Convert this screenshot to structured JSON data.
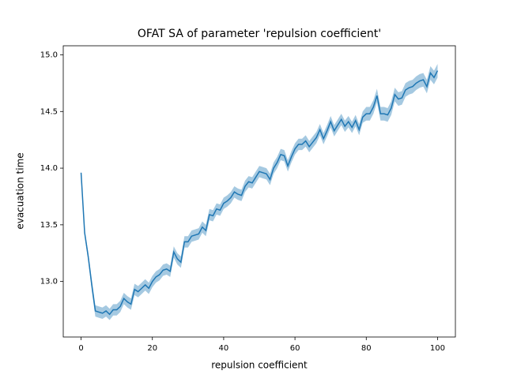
{
  "chart_data": {
    "type": "line",
    "title": "OFAT SA of parameter 'repulsion coefficient'",
    "xlabel": "repulsion coefficient",
    "ylabel": "evacuation time",
    "x": [
      0,
      1,
      2,
      3,
      4,
      5,
      6,
      7,
      8,
      9,
      10,
      11,
      12,
      13,
      14,
      15,
      16,
      17,
      18,
      19,
      20,
      21,
      22,
      23,
      24,
      25,
      26,
      27,
      28,
      29,
      30,
      31,
      32,
      33,
      34,
      35,
      36,
      37,
      38,
      39,
      40,
      41,
      42,
      43,
      44,
      45,
      46,
      47,
      48,
      49,
      50,
      51,
      52,
      53,
      54,
      55,
      56,
      57,
      58,
      59,
      60,
      61,
      62,
      63,
      64,
      65,
      66,
      67,
      68,
      69,
      70,
      71,
      72,
      73,
      74,
      75,
      76,
      77,
      78,
      79,
      80,
      81,
      82,
      83,
      84,
      85,
      86,
      87,
      88,
      89,
      90,
      91,
      92,
      93,
      94,
      95,
      96,
      97,
      98,
      99,
      100
    ],
    "series": [
      {
        "color": "#1f77b4",
        "values": [
          13.96,
          13.43,
          13.22,
          12.97,
          12.74,
          12.73,
          12.72,
          12.74,
          12.71,
          12.75,
          12.75,
          12.78,
          12.85,
          12.82,
          12.8,
          12.93,
          12.91,
          12.94,
          12.97,
          12.94,
          13.0,
          13.04,
          13.06,
          13.1,
          13.11,
          13.09,
          13.26,
          13.2,
          13.17,
          13.35,
          13.35,
          13.4,
          13.41,
          13.42,
          13.48,
          13.45,
          13.59,
          13.58,
          13.64,
          13.63,
          13.69,
          13.71,
          13.74,
          13.79,
          13.77,
          13.76,
          13.84,
          13.88,
          13.87,
          13.92,
          13.97,
          13.96,
          13.95,
          13.9,
          14.0,
          14.05,
          14.12,
          14.11,
          14.02,
          14.1,
          14.17,
          14.21,
          14.21,
          14.24,
          14.19,
          14.23,
          14.27,
          14.34,
          14.26,
          14.33,
          14.41,
          14.33,
          14.38,
          14.43,
          14.37,
          14.41,
          14.36,
          14.42,
          14.34,
          14.45,
          14.48,
          14.48,
          14.54,
          14.64,
          14.48,
          14.48,
          14.47,
          14.53,
          14.65,
          14.61,
          14.62,
          14.69,
          14.71,
          14.72,
          14.75,
          14.77,
          14.78,
          14.72,
          14.84,
          14.8,
          14.86
        ],
        "errors": [
          0.02,
          0.03,
          0.04,
          0.05,
          0.05,
          0.05,
          0.05,
          0.05,
          0.05,
          0.05,
          0.05,
          0.05,
          0.05,
          0.05,
          0.05,
          0.05,
          0.05,
          0.05,
          0.05,
          0.05,
          0.05,
          0.05,
          0.05,
          0.05,
          0.05,
          0.05,
          0.05,
          0.05,
          0.05,
          0.05,
          0.05,
          0.05,
          0.05,
          0.05,
          0.05,
          0.05,
          0.05,
          0.05,
          0.05,
          0.05,
          0.05,
          0.05,
          0.05,
          0.05,
          0.05,
          0.05,
          0.05,
          0.05,
          0.05,
          0.05,
          0.05,
          0.05,
          0.05,
          0.05,
          0.05,
          0.05,
          0.05,
          0.05,
          0.05,
          0.05,
          0.05,
          0.05,
          0.05,
          0.05,
          0.05,
          0.05,
          0.05,
          0.05,
          0.05,
          0.05,
          0.05,
          0.05,
          0.05,
          0.05,
          0.05,
          0.05,
          0.05,
          0.05,
          0.05,
          0.05,
          0.06,
          0.06,
          0.06,
          0.06,
          0.06,
          0.06,
          0.06,
          0.06,
          0.06,
          0.06,
          0.06,
          0.06,
          0.06,
          0.06,
          0.06,
          0.06,
          0.06,
          0.06,
          0.06,
          0.06,
          0.06
        ]
      }
    ],
    "xlim": [
      -5,
      105
    ],
    "xticks": [
      0,
      20,
      40,
      60,
      80,
      100
    ],
    "ylim": [
      12.51,
      15.08
    ],
    "yticks": [
      {
        "value": 13,
        "label": "13.0"
      },
      {
        "value": 13.5,
        "label": "13.5"
      },
      {
        "value": 14,
        "label": "14.0"
      },
      {
        "value": 14.5,
        "label": "14.5"
      },
      {
        "value": 15,
        "label": "15.0"
      }
    ],
    "band_opacity": 0.4
  }
}
